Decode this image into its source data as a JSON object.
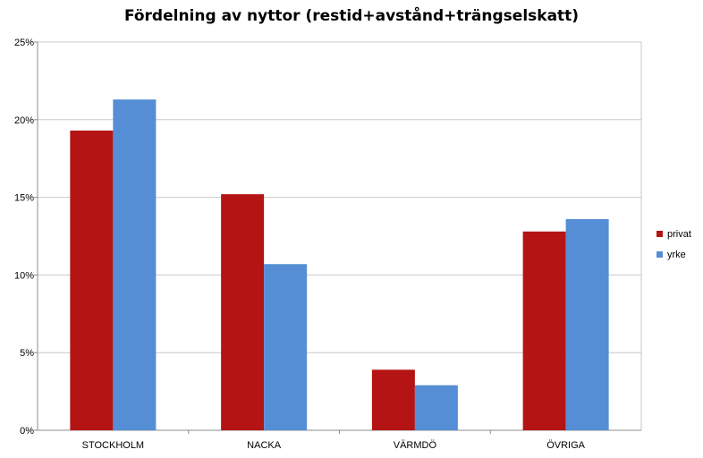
{
  "chart_data": {
    "type": "bar",
    "title": "Fördelning av nyttor (restid+avstånd+trängselskatt)",
    "xlabel": "",
    "ylabel": "",
    "categories": [
      "STOCKHOLM",
      "NACKA",
      "VÄRMDÖ",
      "ÖVRIGA"
    ],
    "series": [
      {
        "name": "privat",
        "color": "#B41414",
        "values": [
          19.3,
          15.2,
          3.9,
          12.8
        ]
      },
      {
        "name": "yrke",
        "color": "#558ED5",
        "values": [
          21.3,
          10.7,
          2.9,
          13.6
        ]
      }
    ],
    "ylim": [
      0,
      25
    ],
    "yticks": [
      0,
      5,
      10,
      15,
      20,
      25
    ],
    "ytick_labels": [
      "0%",
      "5%",
      "10%",
      "15%",
      "20%",
      "25%"
    ],
    "grid": true,
    "legend_position": "right"
  }
}
